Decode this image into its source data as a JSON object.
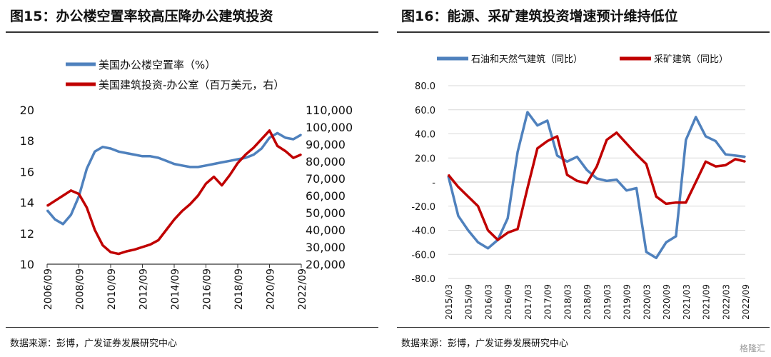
{
  "left_panel": {
    "title": "图15：办公楼空置率较高压降办公建筑投资",
    "source": "数据来源：彭博，广发证券发展研究中心"
  },
  "right_panel": {
    "title": "图16：能源、采矿建筑投资增速预计维持低位",
    "source": "数据来源：彭博，广发证券发展研究中心"
  },
  "watermark": "格隆汇",
  "colors": {
    "blue": "#4f81bd",
    "red": "#c00000",
    "axis": "#333333",
    "grid": "#d9d9d9",
    "text": "#111111"
  },
  "chart_data": [
    {
      "type": "line",
      "title": "",
      "x": [
        "2006/09",
        "2007/03",
        "2007/09",
        "2008/03",
        "2008/09",
        "2009/03",
        "2009/09",
        "2010/03",
        "2010/09",
        "2011/03",
        "2011/09",
        "2012/03",
        "2012/09",
        "2013/03",
        "2013/09",
        "2014/03",
        "2014/09",
        "2015/03",
        "2015/09",
        "2016/03",
        "2016/09",
        "2017/03",
        "2017/09",
        "2018/03",
        "2018/09",
        "2019/03",
        "2019/09",
        "2020/03",
        "2020/09",
        "2021/03",
        "2021/09",
        "2022/03",
        "2022/09"
      ],
      "xticks": [
        "2006/09",
        "2008/09",
        "2010/09",
        "2012/09",
        "2014/09",
        "2016/09",
        "2018/09",
        "2020/09",
        "2022/09"
      ],
      "series": [
        {
          "name": "美国办公楼空置率（%）",
          "axis": "left",
          "color": "#4f81bd",
          "values": [
            13.5,
            12.9,
            12.6,
            13.2,
            14.4,
            16.2,
            17.3,
            17.6,
            17.5,
            17.3,
            17.2,
            17.1,
            17.0,
            17.0,
            16.9,
            16.7,
            16.5,
            16.4,
            16.3,
            16.3,
            16.4,
            16.5,
            16.6,
            16.7,
            16.8,
            16.9,
            17.1,
            17.5,
            18.2,
            18.5,
            18.2,
            18.1,
            18.4
          ]
        },
        {
          "name": "美国建筑投资-办公室（百万美元，右）",
          "axis": "right",
          "color": "#c00000",
          "values": [
            54000,
            57000,
            60000,
            63000,
            61000,
            53000,
            40000,
            31000,
            27000,
            26000,
            27500,
            28500,
            30000,
            31500,
            34000,
            40000,
            46000,
            51000,
            55000,
            60000,
            67000,
            71000,
            66000,
            72000,
            79000,
            84000,
            88000,
            93000,
            98000,
            89000,
            86000,
            82000,
            84000
          ]
        }
      ],
      "ylim_left": [
        10,
        20
      ],
      "yticks_left": [
        "10",
        "12",
        "14",
        "16",
        "18",
        "20"
      ],
      "ylim_right": [
        20000,
        110000
      ],
      "yticks_right": [
        "20,000",
        "30,000",
        "40,000",
        "50,000",
        "60,000",
        "70,000",
        "80,000",
        "90,000",
        "100,000",
        "110,000"
      ],
      "legend": "top-left",
      "grid": false
    },
    {
      "type": "line",
      "title": "",
      "x": [
        "2015/03",
        "2015/06",
        "2015/09",
        "2015/12",
        "2016/03",
        "2016/06",
        "2016/09",
        "2016/12",
        "2017/03",
        "2017/06",
        "2017/09",
        "2017/12",
        "2018/03",
        "2018/06",
        "2018/09",
        "2018/12",
        "2019/03",
        "2019/06",
        "2019/09",
        "2019/12",
        "2020/03",
        "2020/06",
        "2020/09",
        "2020/12",
        "2021/03",
        "2021/06",
        "2021/09",
        "2021/12",
        "2022/03",
        "2022/06",
        "2022/09"
      ],
      "xticks": [
        "2015/03",
        "2015/09",
        "2016/03",
        "2016/09",
        "2017/03",
        "2017/09",
        "2018/03",
        "2018/09",
        "2019/03",
        "2019/09",
        "2020/03",
        "2020/09",
        "2021/03",
        "2021/09",
        "2022/03",
        "2022/09"
      ],
      "series": [
        {
          "name": "石油和天然气建筑（同比）",
          "color": "#4f81bd",
          "values": [
            5,
            -28,
            -40,
            -50,
            -55,
            -48,
            -30,
            25,
            58,
            47,
            51,
            22,
            17,
            21,
            10,
            3,
            1,
            2,
            -7,
            -5,
            -58,
            -63,
            -50,
            -45,
            35,
            54,
            38,
            34,
            23,
            22,
            21
          ]
        },
        {
          "name": "采矿建筑（同比）",
          "color": "#c00000",
          "values": [
            6,
            -4,
            -12,
            -20,
            -40,
            -48,
            -42,
            -39,
            -5,
            28,
            34,
            38,
            6,
            1,
            -1,
            13,
            35,
            41,
            32,
            23,
            15,
            -12,
            -18,
            -17,
            -17,
            0,
            17,
            13,
            14,
            19,
            17
          ]
        }
      ],
      "ylim": [
        -80,
        80
      ],
      "yticks": [
        "80.0",
        "60.0",
        "40.0",
        "20.0",
        "-",
        "-20.0",
        "-40.0",
        "-60.0",
        "-80.0"
      ],
      "legend": "top",
      "grid": true
    }
  ]
}
